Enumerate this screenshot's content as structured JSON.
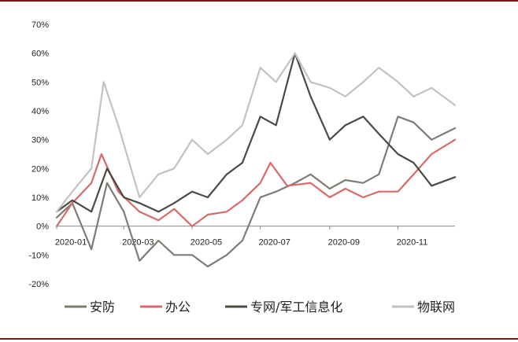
{
  "colors": {
    "frame": "#7a1a1a",
    "axis": "#888888",
    "series": [
      "#7c7c73",
      "#d86a6a",
      "#4a4a43",
      "#c2c2c2"
    ]
  },
  "chart_data": {
    "type": "line",
    "title": "",
    "xlabel": "",
    "ylabel": "",
    "y_unit": "%",
    "ylim": [
      -20,
      70
    ],
    "y_ticks": [
      70,
      60,
      50,
      40,
      30,
      20,
      10,
      0,
      -10,
      -20
    ],
    "y_tick_labels": [
      "70%",
      "60%",
      "50%",
      "40%",
      "30%",
      "20%",
      "10%",
      "0%",
      "-10%",
      "-20%"
    ],
    "x_ticks": [
      {
        "date": "2020-01",
        "label": "2020-01"
      },
      {
        "date": "2020-03",
        "label": "2020-03"
      },
      {
        "date": "2020-05",
        "label": "2020-05"
      },
      {
        "date": "2020-07",
        "label": "2020-07"
      },
      {
        "date": "2020-09",
        "label": "2020-09"
      },
      {
        "date": "2020-11",
        "label": "2020-11"
      }
    ],
    "x_range": [
      "2020-01-01",
      "2020-12-22"
    ],
    "grid": false,
    "legend_position": "bottom",
    "series": [
      {
        "name": "安防",
        "points": [
          [
            "2020-01-01",
            3
          ],
          [
            "2020-01-15",
            8
          ],
          [
            "2020-02-01",
            -8
          ],
          [
            "2020-02-15",
            15
          ],
          [
            "2020-03-01",
            5
          ],
          [
            "2020-03-15",
            -12
          ],
          [
            "2020-04-01",
            -5
          ],
          [
            "2020-04-15",
            -10
          ],
          [
            "2020-05-01",
            -10
          ],
          [
            "2020-05-15",
            -14
          ],
          [
            "2020-06-01",
            -10
          ],
          [
            "2020-06-15",
            -5
          ],
          [
            "2020-07-01",
            10
          ],
          [
            "2020-07-15",
            12
          ],
          [
            "2020-08-01",
            15
          ],
          [
            "2020-08-15",
            18
          ],
          [
            "2020-09-01",
            13
          ],
          [
            "2020-09-15",
            16
          ],
          [
            "2020-10-01",
            15
          ],
          [
            "2020-10-15",
            18
          ],
          [
            "2020-11-01",
            38
          ],
          [
            "2020-11-15",
            36
          ],
          [
            "2020-12-01",
            30
          ],
          [
            "2020-12-22",
            34
          ]
        ]
      },
      {
        "name": "办公",
        "points": [
          [
            "2020-01-01",
            0
          ],
          [
            "2020-01-15",
            8
          ],
          [
            "2020-02-01",
            15
          ],
          [
            "2020-02-10",
            25
          ],
          [
            "2020-02-25",
            12
          ],
          [
            "2020-03-15",
            5
          ],
          [
            "2020-04-01",
            2
          ],
          [
            "2020-04-15",
            6
          ],
          [
            "2020-05-01",
            0
          ],
          [
            "2020-05-15",
            4
          ],
          [
            "2020-06-01",
            5
          ],
          [
            "2020-06-15",
            9
          ],
          [
            "2020-07-01",
            15
          ],
          [
            "2020-07-10",
            22
          ],
          [
            "2020-07-25",
            14
          ],
          [
            "2020-08-15",
            15
          ],
          [
            "2020-09-01",
            10
          ],
          [
            "2020-09-15",
            13
          ],
          [
            "2020-10-01",
            10
          ],
          [
            "2020-10-15",
            12
          ],
          [
            "2020-11-01",
            12
          ],
          [
            "2020-11-15",
            18
          ],
          [
            "2020-12-01",
            25
          ],
          [
            "2020-12-22",
            30
          ]
        ]
      },
      {
        "name": "专网/军工信息化",
        "points": [
          [
            "2020-01-01",
            5
          ],
          [
            "2020-01-15",
            9
          ],
          [
            "2020-02-01",
            5
          ],
          [
            "2020-02-15",
            20
          ],
          [
            "2020-03-01",
            10
          ],
          [
            "2020-03-15",
            8
          ],
          [
            "2020-04-01",
            5
          ],
          [
            "2020-04-15",
            8
          ],
          [
            "2020-05-01",
            12
          ],
          [
            "2020-05-15",
            10
          ],
          [
            "2020-06-01",
            18
          ],
          [
            "2020-06-15",
            22
          ],
          [
            "2020-07-01",
            38
          ],
          [
            "2020-07-15",
            35
          ],
          [
            "2020-08-01",
            60
          ],
          [
            "2020-08-15",
            45
          ],
          [
            "2020-09-01",
            30
          ],
          [
            "2020-09-15",
            35
          ],
          [
            "2020-10-01",
            38
          ],
          [
            "2020-10-15",
            32
          ],
          [
            "2020-11-01",
            25
          ],
          [
            "2020-11-15",
            22
          ],
          [
            "2020-12-01",
            14
          ],
          [
            "2020-12-22",
            17
          ]
        ]
      },
      {
        "name": "物联网",
        "points": [
          [
            "2020-01-01",
            5
          ],
          [
            "2020-01-15",
            12
          ],
          [
            "2020-02-01",
            20
          ],
          [
            "2020-02-12",
            50
          ],
          [
            "2020-02-25",
            35
          ],
          [
            "2020-03-15",
            10
          ],
          [
            "2020-04-01",
            18
          ],
          [
            "2020-04-15",
            20
          ],
          [
            "2020-05-01",
            30
          ],
          [
            "2020-05-15",
            25
          ],
          [
            "2020-06-01",
            30
          ],
          [
            "2020-06-15",
            35
          ],
          [
            "2020-07-01",
            55
          ],
          [
            "2020-07-15",
            50
          ],
          [
            "2020-08-01",
            60
          ],
          [
            "2020-08-15",
            50
          ],
          [
            "2020-09-01",
            48
          ],
          [
            "2020-09-15",
            45
          ],
          [
            "2020-10-01",
            50
          ],
          [
            "2020-10-15",
            55
          ],
          [
            "2020-11-01",
            50
          ],
          [
            "2020-11-15",
            45
          ],
          [
            "2020-12-01",
            48
          ],
          [
            "2020-12-22",
            42
          ]
        ]
      }
    ]
  }
}
